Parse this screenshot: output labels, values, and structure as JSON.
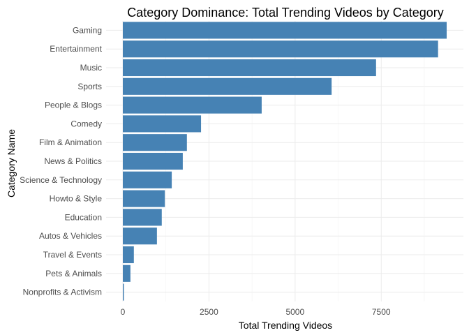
{
  "chart_data": {
    "type": "bar",
    "orientation": "horizontal",
    "title": "Category Dominance: Total Trending Videos by Category",
    "xlabel": "Total Trending Videos",
    "ylabel": "Category Name",
    "categories": [
      "Gaming",
      "Entertainment",
      "Music",
      "Sports",
      "People & Blogs",
      "Comedy",
      "Film & Animation",
      "News & Politics",
      "Science & Technology",
      "Howto & Style",
      "Education",
      "Autos & Vehicles",
      "Travel & Events",
      "Pets & Animals",
      "Nonprofits & Activism"
    ],
    "values": [
      9400,
      9150,
      7350,
      6060,
      4030,
      2270,
      1860,
      1740,
      1420,
      1220,
      1130,
      990,
      320,
      220,
      30
    ],
    "xlim": [
      0,
      9420
    ],
    "xticks": [
      0,
      2500,
      5000,
      7500
    ],
    "xtick_labels": [
      "0",
      "2500",
      "5000",
      "7500"
    ],
    "bar_color": "#4682b4",
    "grid": true,
    "legend": "none"
  }
}
